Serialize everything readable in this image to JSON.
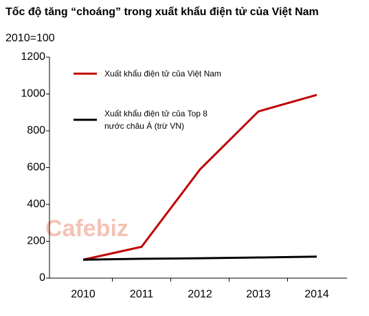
{
  "chart_data": {
    "type": "line",
    "title": "Tốc độ tăng “choáng” trong xuất khẩu điện tử của Việt Nam",
    "subtitle": "2010=100",
    "watermark": "Cafebiz",
    "categories": [
      "2010",
      "2011",
      "2012",
      "2013",
      "2014"
    ],
    "series": [
      {
        "name": "Xuất khẩu điện tử của Việt Nam",
        "color": "#c00000",
        "values": [
          100,
          170,
          590,
          905,
          995
        ]
      },
      {
        "name": "Xuất khẩu điện tử của Top 8 nước châu Á (trừ VN)",
        "color": "#000000",
        "values": [
          100,
          105,
          108,
          112,
          117
        ]
      }
    ],
    "ylim": [
      0,
      1200
    ],
    "yticks": [
      0,
      200,
      400,
      600,
      800,
      1000,
      1200
    ],
    "grid": false
  }
}
